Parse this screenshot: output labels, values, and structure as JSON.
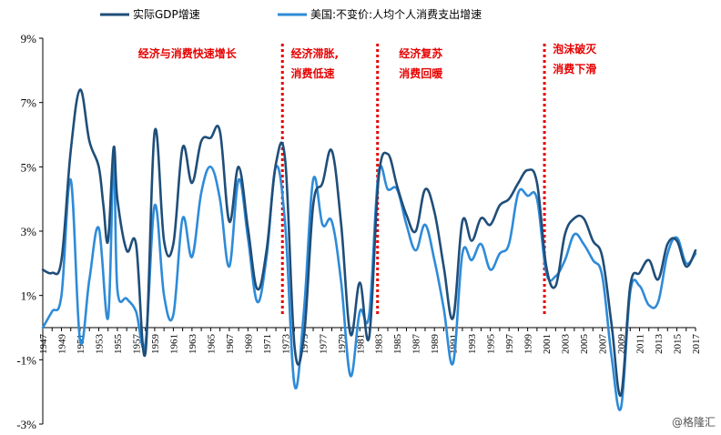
{
  "chart_data": {
    "type": "line",
    "title": "",
    "xlabel": "",
    "ylabel": "",
    "ylim": [
      -3,
      9
    ],
    "xlim": [
      1947,
      2017
    ],
    "y_tick_labels": [
      {
        "value": 9,
        "label": "9%"
      },
      {
        "value": 7,
        "label": "7%"
      },
      {
        "value": 5,
        "label": "5%"
      },
      {
        "value": 3,
        "label": "3%"
      },
      {
        "value": 1,
        "label": "1%"
      },
      {
        "value": -1,
        "label": "-1%"
      },
      {
        "value": -3,
        "label": "-3%"
      }
    ],
    "x_tick_labels": [
      "1947",
      "1949",
      "1951",
      "1953",
      "1955",
      "1957",
      "1959",
      "1961",
      "1963",
      "1965",
      "1967",
      "1969",
      "1971",
      "1973",
      "1975",
      "1977",
      "1979",
      "1981",
      "1983",
      "1985",
      "1987",
      "1989",
      "1991",
      "1993",
      "1995",
      "1997",
      "1999",
      "2001",
      "2003",
      "2005",
      "2007",
      "2009",
      "2011",
      "2013",
      "2015",
      "2017"
    ],
    "legend_position": "top-left",
    "grid": false,
    "series": [
      {
        "name": "实际GDP增速",
        "color": "#1f4e79",
        "points": [
          [
            1947,
            1.8
          ],
          [
            1948,
            1.7
          ],
          [
            1949,
            2.1
          ],
          [
            1950,
            5.5
          ],
          [
            1951,
            7.4
          ],
          [
            1952,
            5.8
          ],
          [
            1953,
            5.0
          ],
          [
            1953.5,
            3.8
          ],
          [
            1954,
            2.7
          ],
          [
            1954.6,
            5.6
          ],
          [
            1955,
            4.0
          ],
          [
            1956,
            2.4
          ],
          [
            1957,
            2.6
          ],
          [
            1958,
            -0.8
          ],
          [
            1959,
            6.1
          ],
          [
            1960,
            2.7
          ],
          [
            1961,
            2.6
          ],
          [
            1962,
            5.6
          ],
          [
            1963,
            4.5
          ],
          [
            1964,
            5.8
          ],
          [
            1965,
            5.9
          ],
          [
            1966,
            6.1
          ],
          [
            1967,
            3.3
          ],
          [
            1968,
            5.0
          ],
          [
            1969,
            3.1
          ],
          [
            1970,
            1.2
          ],
          [
            1971,
            2.4
          ],
          [
            1972,
            5.1
          ],
          [
            1973,
            5.2
          ],
          [
            1974,
            -0.6
          ],
          [
            1975,
            -0.3
          ],
          [
            1976,
            3.8
          ],
          [
            1977,
            4.5
          ],
          [
            1978,
            5.5
          ],
          [
            1979,
            3.2
          ],
          [
            1980,
            -0.2
          ],
          [
            1981,
            1.4
          ],
          [
            1982,
            -0.3
          ],
          [
            1983,
            4.6
          ],
          [
            1984,
            5.4
          ],
          [
            1985,
            4.4
          ],
          [
            1986,
            3.5
          ],
          [
            1987,
            3.0
          ],
          [
            1988,
            4.3
          ],
          [
            1989,
            3.6
          ],
          [
            1990,
            1.9
          ],
          [
            1991,
            0.3
          ],
          [
            1992,
            3.3
          ],
          [
            1993,
            2.7
          ],
          [
            1994,
            3.4
          ],
          [
            1995,
            3.2
          ],
          [
            1996,
            3.8
          ],
          [
            1997,
            4.0
          ],
          [
            1998,
            4.5
          ],
          [
            1999,
            4.9
          ],
          [
            2000,
            4.5
          ],
          [
            2001,
            1.9
          ],
          [
            2002,
            1.3
          ],
          [
            2003,
            2.9
          ],
          [
            2004,
            3.4
          ],
          [
            2005,
            3.4
          ],
          [
            2006,
            2.7
          ],
          [
            2007,
            2.2
          ],
          [
            2008,
            0.1
          ],
          [
            2009,
            -2.1
          ],
          [
            2010,
            1.3
          ],
          [
            2011,
            1.7
          ],
          [
            2012,
            2.1
          ],
          [
            2013,
            1.5
          ],
          [
            2014,
            2.6
          ],
          [
            2015,
            2.7
          ],
          [
            2016,
            1.9
          ],
          [
            2017,
            2.4
          ]
        ]
      },
      {
        "name": "美国:不变价:人均个人消费支出增速",
        "color": "#2e8bd8",
        "points": [
          [
            1947,
            0.0
          ],
          [
            1948,
            0.5
          ],
          [
            1949,
            1.0
          ],
          [
            1950,
            4.6
          ],
          [
            1951,
            -0.4
          ],
          [
            1952,
            1.5
          ],
          [
            1953,
            3.1
          ],
          [
            1954,
            0.3
          ],
          [
            1954.6,
            5.2
          ],
          [
            1955,
            1.2
          ],
          [
            1956,
            0.9
          ],
          [
            1957,
            0.5
          ],
          [
            1958,
            -0.5
          ],
          [
            1959,
            3.8
          ],
          [
            1960,
            1.0
          ],
          [
            1961,
            0.4
          ],
          [
            1962,
            3.4
          ],
          [
            1963,
            2.2
          ],
          [
            1964,
            4.2
          ],
          [
            1965,
            5.0
          ],
          [
            1966,
            4.0
          ],
          [
            1967,
            1.9
          ],
          [
            1968,
            4.6
          ],
          [
            1969,
            2.8
          ],
          [
            1970,
            0.8
          ],
          [
            1971,
            2.2
          ],
          [
            1972,
            5.0
          ],
          [
            1973,
            3.2
          ],
          [
            1974,
            -1.8
          ],
          [
            1975,
            0.5
          ],
          [
            1976,
            4.6
          ],
          [
            1977,
            3.2
          ],
          [
            1978,
            3.3
          ],
          [
            1979,
            1.4
          ],
          [
            1980,
            -1.5
          ],
          [
            1981,
            0.5
          ],
          [
            1982,
            0.4
          ],
          [
            1983,
            4.8
          ],
          [
            1984,
            4.3
          ],
          [
            1985,
            4.3
          ],
          [
            1986,
            3.2
          ],
          [
            1987,
            2.4
          ],
          [
            1988,
            3.2
          ],
          [
            1989,
            2.1
          ],
          [
            1990,
            0.6
          ],
          [
            1991,
            -1.1
          ],
          [
            1992,
            2.3
          ],
          [
            1993,
            2.1
          ],
          [
            1994,
            2.6
          ],
          [
            1995,
            1.8
          ],
          [
            1996,
            2.3
          ],
          [
            1997,
            2.6
          ],
          [
            1998,
            4.2
          ],
          [
            1999,
            4.1
          ],
          [
            2000,
            4.0
          ],
          [
            2001,
            1.7
          ],
          [
            2002,
            1.6
          ],
          [
            2003,
            2.1
          ],
          [
            2004,
            2.9
          ],
          [
            2005,
            2.6
          ],
          [
            2006,
            2.1
          ],
          [
            2007,
            1.6
          ],
          [
            2008,
            -0.9
          ],
          [
            2009,
            -2.5
          ],
          [
            2010,
            1.1
          ],
          [
            2011,
            1.3
          ],
          [
            2012,
            0.7
          ],
          [
            2013,
            0.8
          ],
          [
            2014,
            2.3
          ],
          [
            2015,
            2.8
          ],
          [
            2016,
            2.0
          ],
          [
            2017,
            2.3
          ]
        ]
      }
    ],
    "reference_lines": [
      {
        "x": 1972.7,
        "color": "#e60000",
        "style": "dotted"
      },
      {
        "x": 1982.9,
        "color": "#e60000",
        "style": "dotted"
      },
      {
        "x": 2000.8,
        "color": "#e60000",
        "style": "dotted"
      }
    ],
    "annotations": [
      {
        "lines": [
          "经济与消费快速增长"
        ],
        "x": 1962.5,
        "y": 8.4,
        "anchor": "middle"
      },
      {
        "lines": [
          "经济滞胀,",
          "消费低速"
        ],
        "x": 1973.6,
        "y": 8.4,
        "anchor": "start"
      },
      {
        "lines": [
          "经济复苏",
          "消费回暖"
        ],
        "x": 1985.2,
        "y": 8.4,
        "anchor": "start"
      },
      {
        "lines": [
          "泡沫破灭",
          "消费下滑"
        ],
        "x": 2001.7,
        "y": 8.55,
        "anchor": "start"
      }
    ]
  },
  "watermark": "@格隆汇"
}
